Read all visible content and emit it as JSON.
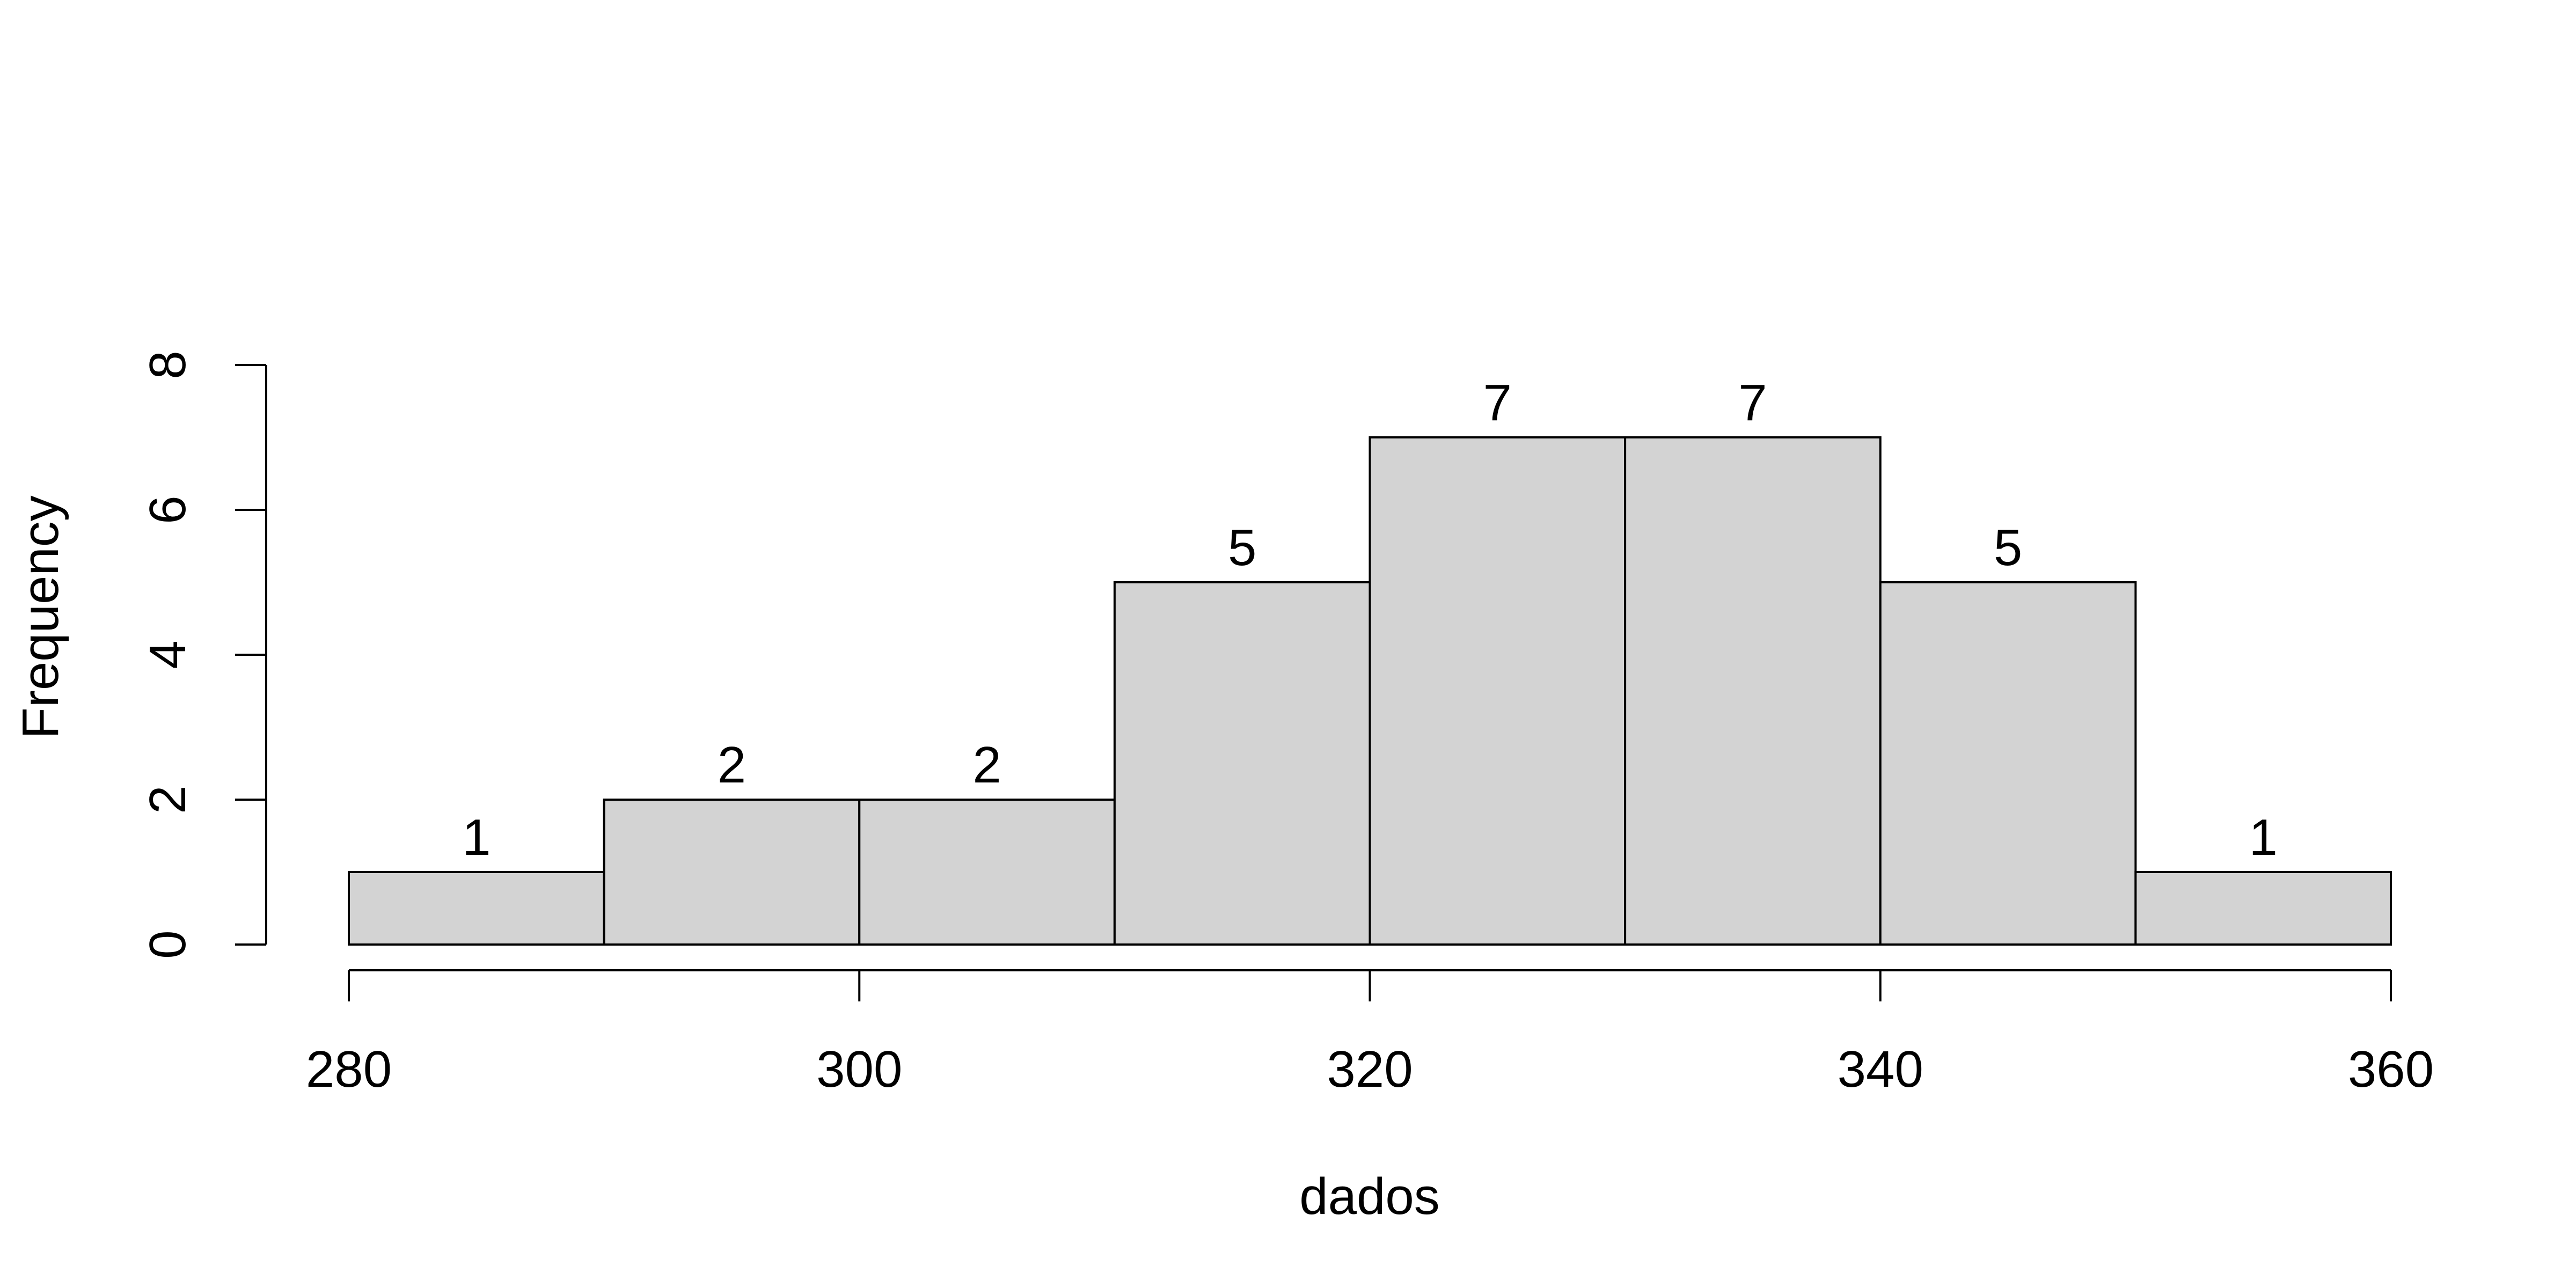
{
  "chart_data": {
    "type": "bar",
    "chart_kind": "histogram",
    "bin_edges": [
      280,
      290,
      300,
      310,
      320,
      330,
      340,
      350,
      360
    ],
    "values": [
      1,
      2,
      2,
      5,
      7,
      7,
      5,
      1
    ],
    "value_labels": [
      "1",
      "2",
      "2",
      "5",
      "7",
      "7",
      "5",
      "1"
    ],
    "title": "",
    "xlabel": "dados",
    "ylabel": "Frequency",
    "xlim": [
      280,
      360
    ],
    "ylim": [
      0,
      8
    ],
    "x_ticks": [
      280,
      300,
      320,
      340,
      360
    ],
    "x_tick_labels": [
      "280",
      "300",
      "320",
      "340",
      "360"
    ],
    "y_ticks": [
      0,
      2,
      4,
      6,
      8
    ],
    "y_tick_labels": [
      "0",
      "2",
      "4",
      "6",
      "8"
    ],
    "grid": false,
    "legend": "none",
    "colors": {
      "bar_fill": "#d3d3d3",
      "bar_stroke": "#000000",
      "text": "#000000"
    }
  }
}
